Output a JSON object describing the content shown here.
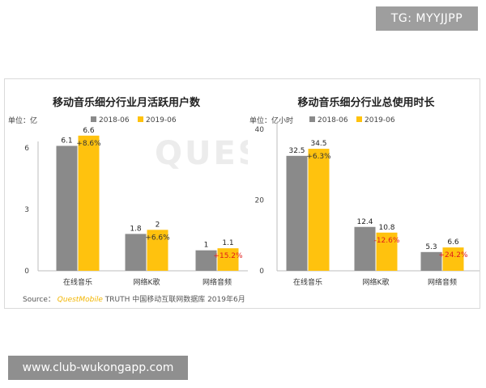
{
  "overlay": {
    "tg_label": "TG: MYYJJPP",
    "footer_url": "www.club-wukongapp.com"
  },
  "watermark": {
    "text": "QUESTMOBILE"
  },
  "source": {
    "prefix": "Source：",
    "brand": "QuestMobile",
    "suffix": "TRUTH 中国移动互联网数据库 2019年6月"
  },
  "colors": {
    "series_2018": "#8a8a8a",
    "series_2019": "#ffc20e",
    "change_positive": "#333333",
    "change_negative": "#e01b1b"
  },
  "chart_data": [
    {
      "type": "bar",
      "title": "移动音乐细分行业月活跃用户数",
      "unit": "单位：亿",
      "categories": [
        "在线音乐",
        "网络K歌",
        "网络音频"
      ],
      "series": [
        {
          "name": "2018-06",
          "values": [
            6.1,
            1.8,
            1.0
          ]
        },
        {
          "name": "2019-06",
          "values": [
            6.6,
            2.0,
            1.1
          ]
        }
      ],
      "changes": [
        "+8.6%",
        "+6.6%",
        "+15.2%"
      ],
      "ylim": [
        0,
        6
      ],
      "yticks": [
        0,
        3,
        6
      ],
      "xlabel": "",
      "ylabel": "",
      "legend": "top"
    },
    {
      "type": "bar",
      "title": "移动音乐细分行业总使用时长",
      "unit": "单位：亿小时",
      "categories": [
        "在线音乐",
        "网络K歌",
        "网络音频"
      ],
      "series": [
        {
          "name": "2018-06",
          "values": [
            32.5,
            12.4,
            5.3
          ]
        },
        {
          "name": "2019-06",
          "values": [
            34.5,
            10.8,
            6.6
          ]
        }
      ],
      "changes": [
        "+6.3%",
        "-12.6%",
        "+24.2%"
      ],
      "ylim": [
        0,
        40
      ],
      "yticks": [
        0,
        20,
        40
      ],
      "xlabel": "",
      "ylabel": "",
      "legend": "top"
    }
  ]
}
